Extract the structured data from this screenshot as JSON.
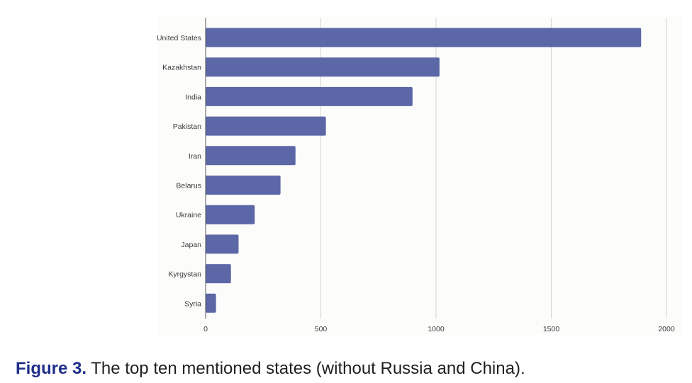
{
  "caption": {
    "label": "Figure 3.",
    "text": "The top ten mentioned states (without Russia and China)."
  },
  "colors": {
    "bar": "#5b67a6",
    "grid": "#d4d4d4",
    "axis": "#555555",
    "caption_label": "#1f2f8a"
  },
  "chart_data": {
    "type": "bar",
    "orientation": "horizontal",
    "categories": [
      "United States",
      "Kazakhstan",
      "India",
      "Pakistan",
      "Iran",
      "Belarus",
      "Ukraine",
      "Japan",
      "Kyrgystan",
      "Syria"
    ],
    "values": [
      1890,
      1015,
      898,
      522,
      390,
      325,
      213,
      143,
      110,
      45
    ],
    "xlim": [
      0,
      2000
    ],
    "xticks": [
      0,
      500,
      1000,
      1500,
      2000
    ],
    "grid": true,
    "legend": "none"
  }
}
